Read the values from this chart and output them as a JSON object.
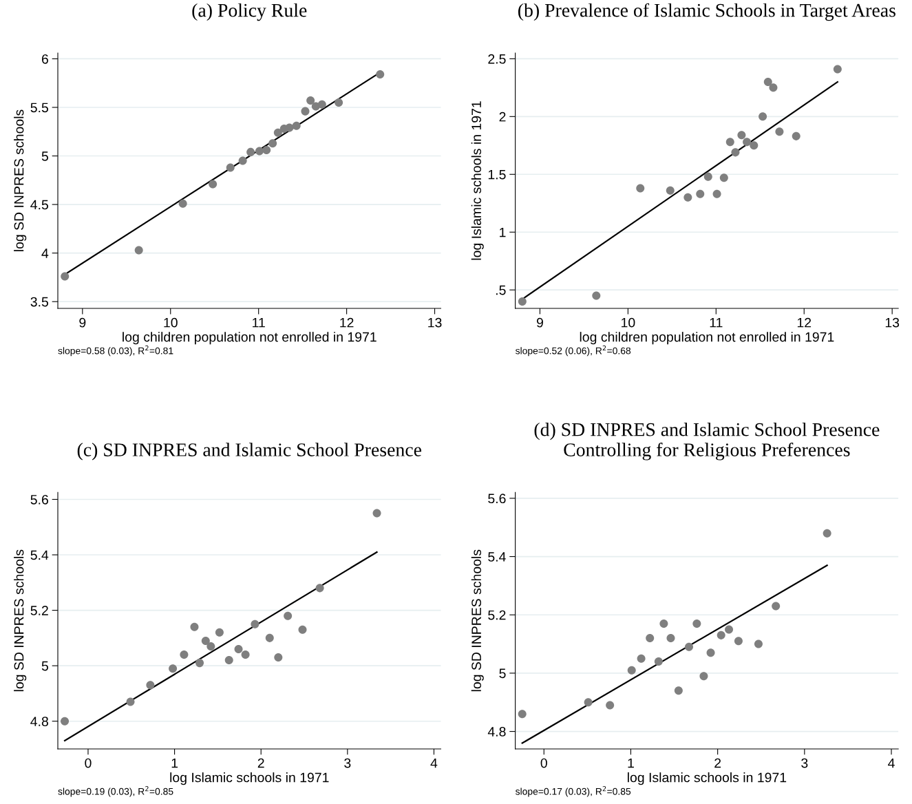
{
  "chart_data": [
    {
      "type": "scatter",
      "title": "(a) Policy Rule",
      "xlabel": "log children population not enrolled in 1971",
      "ylabel": "log SD INPRES schools",
      "xlim": [
        8.72,
        13.07
      ],
      "ylim": [
        3.43,
        6.06
      ],
      "xticks": [
        9,
        10,
        11,
        12,
        13
      ],
      "yticks": [
        3.5,
        4,
        4.5,
        5,
        5.5,
        6
      ],
      "grid": "y",
      "series": [
        {
          "marker": "circle",
          "color": "#7f7f7f",
          "x": [
            8.8,
            9.64,
            10.14,
            10.48,
            10.68,
            10.82,
            10.91,
            11.01,
            11.09,
            11.16,
            11.22,
            11.29,
            11.35,
            11.43,
            11.53,
            11.59,
            11.65,
            11.72,
            11.91,
            12.38
          ],
          "values": [
            3.76,
            4.03,
            4.51,
            4.71,
            4.88,
            4.95,
            5.04,
            5.05,
            5.06,
            5.13,
            5.24,
            5.28,
            5.29,
            5.31,
            5.46,
            5.57,
            5.51,
            5.53,
            5.55,
            5.84
          ]
        },
        {
          "type": "line",
          "color": "#000000",
          "x": [
            8.8,
            12.38
          ],
          "values": [
            3.78,
            5.86
          ]
        }
      ],
      "annotations": [
        "slope=0.58 (0.03), R$^{2}$=0.81"
      ]
    },
    {
      "type": "scatter",
      "title": "(b) Prevalence of Islamic Schools in Target Areas",
      "xlabel": "log children population not enrolled in 1971",
      "ylabel": "log Islamic schools in 1971",
      "xlim": [
        8.72,
        13.07
      ],
      "ylim": [
        0.34,
        2.55
      ],
      "xticks": [
        9,
        10,
        11,
        12,
        13
      ],
      "yticks": [
        {
          "value": 0.5,
          "label": ".5"
        },
        1,
        1.5,
        2,
        2.5
      ],
      "grid": "y",
      "series": [
        {
          "marker": "circle",
          "color": "#7f7f7f",
          "x": [
            8.8,
            9.64,
            10.14,
            10.48,
            10.68,
            10.82,
            10.91,
            11.01,
            11.09,
            11.16,
            11.22,
            11.29,
            11.35,
            11.43,
            11.53,
            11.59,
            11.65,
            11.72,
            11.91,
            12.38
          ],
          "values": [
            0.4,
            0.45,
            1.38,
            1.36,
            1.3,
            1.33,
            1.48,
            1.33,
            1.47,
            1.78,
            1.69,
            1.84,
            1.78,
            1.75,
            2.0,
            2.3,
            2.25,
            1.87,
            1.83,
            2.41
          ]
        },
        {
          "type": "line",
          "color": "#000000",
          "x": [
            8.8,
            12.38
          ],
          "values": [
            0.42,
            2.3
          ]
        }
      ],
      "annotations": [
        "slope=0.52 (0.06), R$^{2}$=0.68"
      ]
    },
    {
      "type": "scatter",
      "title": "(c) SD INPRES and Islamic School Presence",
      "xlabel": "log Islamic schools in 1971",
      "ylabel": "log SD INPRES schools",
      "xlim": [
        -0.35,
        4.08
      ],
      "ylim": [
        4.7,
        5.625
      ],
      "xticks": [
        0,
        1,
        2,
        3,
        4
      ],
      "yticks": [
        4.8,
        5,
        5.2,
        5.4,
        5.6
      ],
      "grid": "y",
      "series": [
        {
          "marker": "circle",
          "color": "#7f7f7f",
          "x": [
            -0.27,
            0.49,
            0.72,
            0.98,
            1.11,
            1.23,
            1.29,
            1.36,
            1.42,
            1.52,
            1.63,
            1.74,
            1.82,
            1.93,
            2.1,
            2.2,
            2.31,
            2.48,
            2.68,
            3.34
          ],
          "values": [
            4.8,
            4.87,
            4.93,
            4.99,
            5.04,
            5.14,
            5.01,
            5.09,
            5.07,
            5.12,
            5.02,
            5.06,
            5.04,
            5.15,
            5.1,
            5.03,
            5.18,
            5.13,
            5.28,
            5.55
          ]
        },
        {
          "type": "line",
          "color": "#000000",
          "x": [
            -0.27,
            3.34
          ],
          "values": [
            4.73,
            5.41
          ]
        }
      ],
      "annotations": [
        "slope=0.19 (0.03), R$^{2}$=0.85"
      ]
    },
    {
      "type": "scatter",
      "title": "(d) SD INPRES and Islamic School Presence\nControlling for Religious Preferences",
      "xlabel": "log Islamic schools in 1971",
      "ylabel": "log SD INPRES schools",
      "xlim": [
        -0.33,
        4.08
      ],
      "ylim": [
        4.74,
        5.62
      ],
      "xticks": [
        0,
        1,
        2,
        3,
        4
      ],
      "yticks": [
        4.8,
        5,
        5.2,
        5.4,
        5.6
      ],
      "grid": "y",
      "series": [
        {
          "marker": "circle",
          "color": "#7f7f7f",
          "x": [
            -0.25,
            0.51,
            0.76,
            1.01,
            1.12,
            1.22,
            1.32,
            1.38,
            1.46,
            1.55,
            1.67,
            1.76,
            1.84,
            1.92,
            2.04,
            2.13,
            2.24,
            2.47,
            2.67,
            3.26
          ],
          "values": [
            4.86,
            4.9,
            4.89,
            5.01,
            5.05,
            5.12,
            5.04,
            5.17,
            5.12,
            4.94,
            5.09,
            5.17,
            4.99,
            5.07,
            5.13,
            5.15,
            5.11,
            5.1,
            5.23,
            5.48
          ]
        },
        {
          "type": "line",
          "color": "#000000",
          "x": [
            -0.25,
            3.26
          ],
          "values": [
            4.76,
            5.37
          ]
        }
      ],
      "annotations": [
        "slope=0.17 (0.03), R$^{2}$=0.85"
      ]
    }
  ]
}
